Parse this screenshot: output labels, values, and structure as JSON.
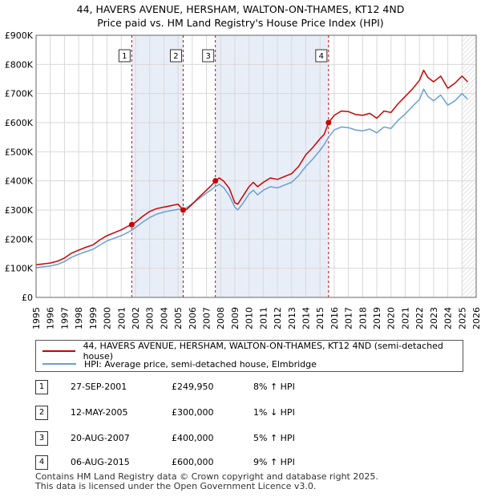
{
  "title_line1": "44, HAVERS AVENUE, HERSHAM, WALTON-ON-THAMES, KT12 4ND",
  "title_line2": "Price paid vs. HM Land Registry's House Price Index (HPI)",
  "legend": {
    "property_label": "44, HAVERS AVENUE, HERSHAM, WALTON-ON-THAMES, KT12 4ND (semi-detached house)",
    "hpi_label": "HPI: Average price, semi-detached house, Elmbridge"
  },
  "sales": [
    {
      "num": "1",
      "date": "27-SEP-2001",
      "price": "£249,950",
      "hpi": "8% ↑ HPI"
    },
    {
      "num": "2",
      "date": "12-MAY-2005",
      "price": "£300,000",
      "hpi": "1% ↓ HPI"
    },
    {
      "num": "3",
      "date": "20-AUG-2007",
      "price": "£400,000",
      "hpi": "5% ↑ HPI"
    },
    {
      "num": "4",
      "date": "06-AUG-2015",
      "price": "£600,000",
      "hpi": "9% ↑ HPI"
    }
  ],
  "footer_line1": "Contains HM Land Registry data © Crown copyright and database right 2025.",
  "footer_line2": "This data is licensed under the Open Government Licence v3.0.",
  "colors": {
    "property": "#cc0000",
    "hpi": "#6a9fd4",
    "shade": "#e8eef8",
    "grid": "#d8d8d8"
  },
  "chart_data": {
    "type": "line",
    "x_range": [
      1995,
      2026
    ],
    "ylim": [
      0,
      900000
    ],
    "y_ticks": [
      {
        "value": 0,
        "label": "£0"
      },
      {
        "value": 100000,
        "label": "£100K"
      },
      {
        "value": 200000,
        "label": "£200K"
      },
      {
        "value": 300000,
        "label": "£300K"
      },
      {
        "value": 400000,
        "label": "£400K"
      },
      {
        "value": 500000,
        "label": "£500K"
      },
      {
        "value": 600000,
        "label": "£600K"
      },
      {
        "value": 700000,
        "label": "£700K"
      },
      {
        "value": 800000,
        "label": "£800K"
      },
      {
        "value": 900000,
        "label": "£900K"
      }
    ],
    "x_ticks": [
      "1995",
      "1996",
      "1997",
      "1998",
      "1999",
      "2000",
      "2001",
      "2002",
      "2003",
      "2004",
      "2005",
      "2006",
      "2007",
      "2008",
      "2009",
      "2010",
      "2011",
      "2012",
      "2013",
      "2014",
      "2015",
      "2016",
      "2017",
      "2018",
      "2019",
      "2020",
      "2021",
      "2022",
      "2023",
      "2024",
      "2025",
      "2026"
    ],
    "shaded_periods": [
      [
        2001.74,
        2005.36
      ],
      [
        2007.63,
        2015.6
      ]
    ],
    "forecast_start": 2025.0,
    "markers": [
      {
        "label": "1",
        "x": 2001.74,
        "y": 249950
      },
      {
        "label": "2",
        "x": 2005.36,
        "y": 300000
      },
      {
        "label": "3",
        "x": 2007.63,
        "y": 400000
      },
      {
        "label": "4",
        "x": 2015.6,
        "y": 600000
      }
    ],
    "series": [
      {
        "name": "44, HAVERS AVENUE, HERSHAM, WALTON-ON-THAMES, KT12 4ND (semi-detached house)",
        "x": [
          1995,
          1995.5,
          1996,
          1996.5,
          1997,
          1997.5,
          1998,
          1998.5,
          1999,
          1999.5,
          2000,
          2000.5,
          2001,
          2001.5,
          2001.74,
          2002,
          2002.5,
          2003,
          2003.5,
          2004,
          2004.5,
          2005,
          2005.36,
          2005.6,
          2006,
          2006.5,
          2007,
          2007.3,
          2007.63,
          2007.9,
          2008.2,
          2008.6,
          2009,
          2009.2,
          2009.6,
          2010,
          2010.3,
          2010.6,
          2011,
          2011.5,
          2012,
          2012.5,
          2013,
          2013.5,
          2014,
          2014.5,
          2015,
          2015.3,
          2015.6,
          2016,
          2016.5,
          2017,
          2017.5,
          2018,
          2018.5,
          2019,
          2019.5,
          2020,
          2020.5,
          2021,
          2021.5,
          2022,
          2022.3,
          2022.6,
          2023,
          2023.5,
          2024,
          2024.5,
          2025,
          2025.4
        ],
        "y": [
          112000,
          115000,
          118000,
          124000,
          135000,
          152000,
          162000,
          172000,
          180000,
          198000,
          212000,
          222000,
          232000,
          245000,
          249950,
          258000,
          278000,
          295000,
          305000,
          310000,
          315000,
          320000,
          300000,
          302000,
          320000,
          345000,
          368000,
          382000,
          400000,
          410000,
          400000,
          375000,
          325000,
          320000,
          350000,
          380000,
          395000,
          380000,
          395000,
          410000,
          405000,
          415000,
          425000,
          450000,
          490000,
          515000,
          545000,
          560000,
          600000,
          625000,
          640000,
          638000,
          628000,
          625000,
          632000,
          615000,
          640000,
          635000,
          665000,
          690000,
          715000,
          745000,
          780000,
          755000,
          740000,
          760000,
          718000,
          735000,
          760000,
          740000
        ]
      },
      {
        "name": "HPI: Average price, semi-detached house, Elmbridge",
        "x": [
          1995,
          1995.5,
          1996,
          1996.5,
          1997,
          1997.5,
          1998,
          1998.5,
          1999,
          1999.5,
          2000,
          2000.5,
          2001,
          2001.5,
          2001.74,
          2002,
          2002.5,
          2003,
          2003.5,
          2004,
          2004.5,
          2005,
          2005.36,
          2005.6,
          2006,
          2006.5,
          2007,
          2007.3,
          2007.63,
          2007.9,
          2008.2,
          2008.6,
          2009,
          2009.2,
          2009.6,
          2010,
          2010.3,
          2010.6,
          2011,
          2011.5,
          2012,
          2012.5,
          2013,
          2013.5,
          2014,
          2014.5,
          2015,
          2015.3,
          2015.6,
          2016,
          2016.5,
          2017,
          2017.5,
          2018,
          2018.5,
          2019,
          2019.5,
          2020,
          2020.5,
          2021,
          2021.5,
          2022,
          2022.3,
          2022.6,
          2023,
          2023.5,
          2024,
          2024.5,
          2025,
          2025.4
        ],
        "y": [
          102000,
          105000,
          108000,
          113000,
          123000,
          138000,
          148000,
          157000,
          165000,
          180000,
          194000,
          203000,
          212000,
          224000,
          231000,
          240000,
          258000,
          274000,
          286000,
          293000,
          298000,
          302000,
          303000,
          308000,
          322000,
          340000,
          358000,
          368000,
          381000,
          388000,
          378000,
          350000,
          310000,
          300000,
          325000,
          355000,
          368000,
          352000,
          368000,
          380000,
          376000,
          386000,
          395000,
          418000,
          450000,
          475000,
          505000,
          525000,
          550000,
          575000,
          585000,
          583000,
          575000,
          572000,
          578000,
          565000,
          585000,
          580000,
          608000,
          630000,
          655000,
          680000,
          715000,
          690000,
          675000,
          695000,
          660000,
          675000,
          700000,
          680000
        ]
      }
    ]
  }
}
